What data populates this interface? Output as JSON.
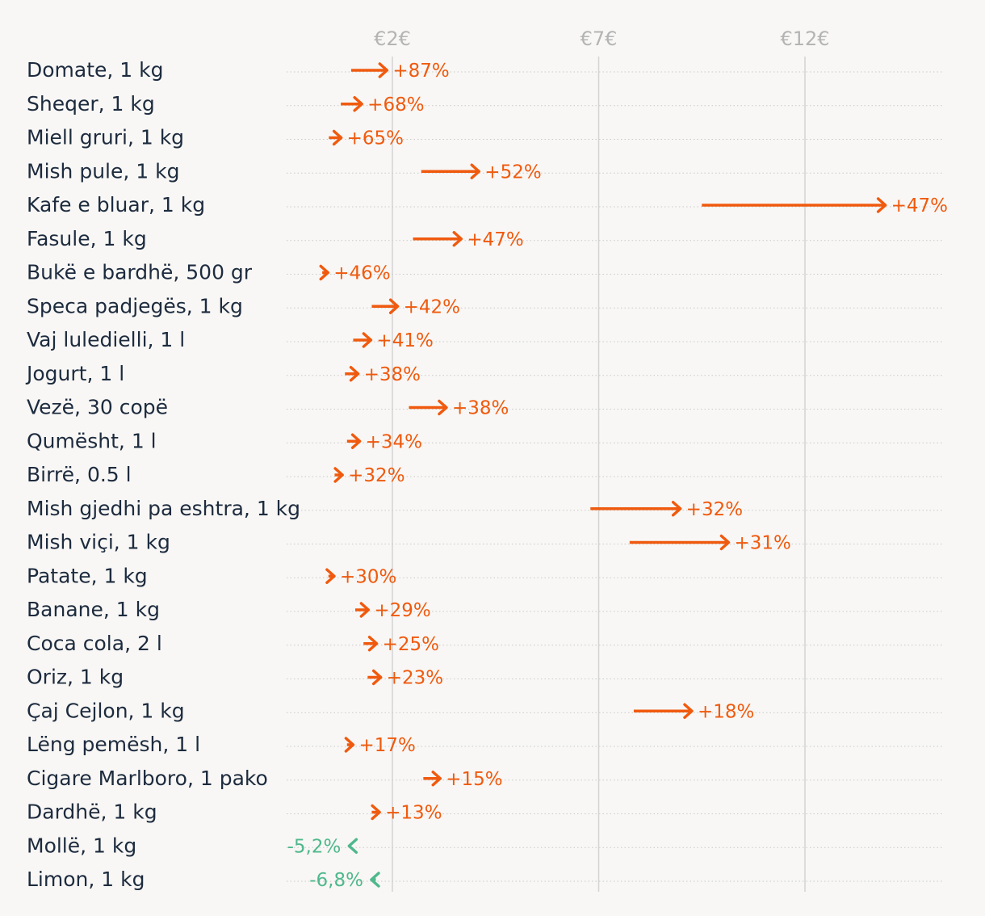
{
  "chart_data": {
    "type": "arrow-range",
    "title": "",
    "xlabel": "",
    "ylabel": "",
    "x_ticks": [
      {
        "value": 2,
        "label": "€2€"
      },
      {
        "value": 7,
        "label": "€7€"
      },
      {
        "value": 12,
        "label": "€12€"
      }
    ],
    "xlim": [
      -0.6,
      15.4
    ],
    "colors": {
      "increase": "#f05a0e",
      "decrease": "#4fb88c",
      "grid": "#d4d4d4",
      "text": "#1d2b3e",
      "tick": "#b4b4b4"
    },
    "rows": [
      {
        "label": "Domate, 1 kg",
        "from": 1.0,
        "to": 1.87,
        "change": "+87%"
      },
      {
        "label": "Sheqer, 1 kg",
        "from": 0.75,
        "to": 1.26,
        "change": "+68%"
      },
      {
        "label": "Miell gruri, 1 kg",
        "from": 0.46,
        "to": 0.76,
        "change": "+65%"
      },
      {
        "label": "Mish pule, 1 kg",
        "from": 2.7,
        "to": 4.1,
        "change": "+52%"
      },
      {
        "label": "Kafe e bluar, 1 kg",
        "from": 9.5,
        "to": 13.95,
        "change": "+47%"
      },
      {
        "label": "Fasule, 1 kg",
        "from": 2.5,
        "to": 3.67,
        "change": "+47%"
      },
      {
        "label": "Bukë e bardhë, 500 gr",
        "from": 0.3,
        "to": 0.44,
        "change": "+46%"
      },
      {
        "label": "Speca padjegës, 1 kg",
        "from": 1.5,
        "to": 2.13,
        "change": "+42%"
      },
      {
        "label": "Vaj luledielli, 1 l",
        "from": 1.05,
        "to": 1.48,
        "change": "+41%"
      },
      {
        "label": "Jogurt, 1 l",
        "from": 0.85,
        "to": 1.17,
        "change": "+38%"
      },
      {
        "label": "Vezë, 30 copë",
        "from": 2.4,
        "to": 3.31,
        "change": "+38%"
      },
      {
        "label": "Qumësht, 1 l",
        "from": 0.9,
        "to": 1.21,
        "change": "+34%"
      },
      {
        "label": "Birrë, 0.5 l",
        "from": 0.6,
        "to": 0.79,
        "change": "+32%"
      },
      {
        "label": "Mish gjedhi pa eshtra, 1 kg",
        "from": 6.8,
        "to": 8.98,
        "change": "+32%"
      },
      {
        "label": "Mish viçi, 1 kg",
        "from": 7.75,
        "to": 10.15,
        "change": "+31%"
      },
      {
        "label": "Patate, 1 kg",
        "from": 0.45,
        "to": 0.59,
        "change": "+30%"
      },
      {
        "label": "Banane, 1 kg",
        "from": 1.1,
        "to": 1.42,
        "change": "+29%"
      },
      {
        "label": "Coca cola, 2 l",
        "from": 1.3,
        "to": 1.62,
        "change": "+25%"
      },
      {
        "label": "Oriz, 1 kg",
        "from": 1.4,
        "to": 1.72,
        "change": "+23%"
      },
      {
        "label": "Çaj Cejlon, 1 kg",
        "from": 7.85,
        "to": 9.26,
        "change": "+18%"
      },
      {
        "label": "Lëng pemësh, 1 l",
        "from": 0.9,
        "to": 1.05,
        "change": "+17%"
      },
      {
        "label": "Cigare Marlboro, 1 pako",
        "from": 2.75,
        "to": 3.16,
        "change": "+15%"
      },
      {
        "label": "Dardhë, 1 kg",
        "from": 1.5,
        "to": 1.69,
        "change": "+13%"
      },
      {
        "label": "Mollë, 1 kg",
        "from": 1.0,
        "to": 0.95,
        "change": "-5,2%"
      },
      {
        "label": "Limon, 1 kg",
        "from": 1.6,
        "to": 1.49,
        "change": "-6,8%"
      }
    ]
  }
}
